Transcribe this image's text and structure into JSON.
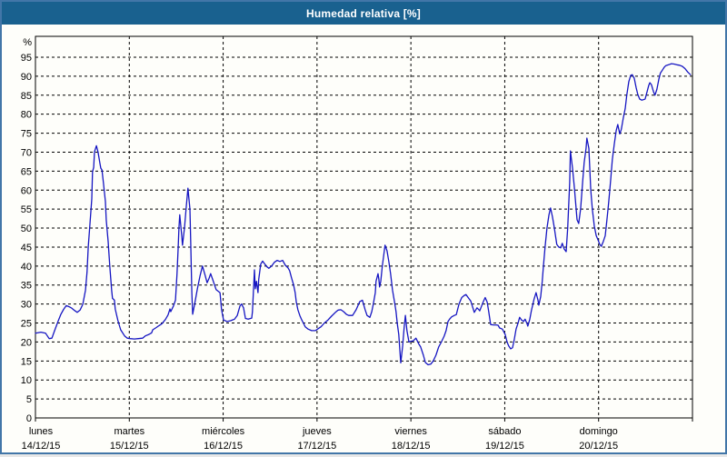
{
  "window": {
    "title": "Humedad relativa [%]"
  },
  "colors": {
    "titlebar": "#19618f",
    "frame_border": "#4276a8",
    "background": "#fefefa",
    "plot_frame": "#000000",
    "grid": "#000000",
    "line": "#1616c2",
    "text": "#000000"
  },
  "chart_data": {
    "type": "line",
    "title": "Humedad relativa [%]",
    "ylabel": "%",
    "series_name": "Humedad relativa",
    "x_unit": "hours since lunes 14/12/15 00:00",
    "xlim": [
      0,
      168
    ],
    "ylim": [
      0,
      100.5
    ],
    "grid": "dashed",
    "legend": "none",
    "y_ticks": [
      0,
      5,
      10,
      15,
      20,
      25,
      30,
      35,
      40,
      45,
      50,
      55,
      60,
      65,
      70,
      75,
      80,
      85,
      90,
      95
    ],
    "x_ticks": [
      {
        "day": "lunes",
        "date": "14/12/15",
        "t": 0
      },
      {
        "day": "martes",
        "date": "15/12/15",
        "t": 24
      },
      {
        "day": "miércoles",
        "date": "16/12/15",
        "t": 48
      },
      {
        "day": "jueves",
        "date": "17/12/15",
        "t": 72
      },
      {
        "day": "viernes",
        "date": "18/12/15",
        "t": 96
      },
      {
        "day": "sábado",
        "date": "19/12/15",
        "t": 120
      },
      {
        "day": "domingo",
        "date": "20/12/15",
        "t": 144
      }
    ],
    "points": [
      [
        0.0,
        22.3
      ],
      [
        1.4,
        22.6
      ],
      [
        2.6,
        22.3
      ],
      [
        3.5,
        20.9
      ],
      [
        4.2,
        21.0
      ],
      [
        4.9,
        23.0
      ],
      [
        5.8,
        25.5
      ],
      [
        6.5,
        27.3
      ],
      [
        7.2,
        28.6
      ],
      [
        7.9,
        29.6
      ],
      [
        8.6,
        29.3
      ],
      [
        9.3,
        28.9
      ],
      [
        10.0,
        28.3
      ],
      [
        10.7,
        27.8
      ],
      [
        11.4,
        28.4
      ],
      [
        12.1,
        29.9
      ],
      [
        12.8,
        33.7
      ],
      [
        13.2,
        38.5
      ],
      [
        13.5,
        45.0
      ],
      [
        13.9,
        50.5
      ],
      [
        14.4,
        57.7
      ],
      [
        14.6,
        64.8
      ],
      [
        14.9,
        66.0
      ],
      [
        15.1,
        70.1
      ],
      [
        15.6,
        71.7
      ],
      [
        16.0,
        70.0
      ],
      [
        16.5,
        67.0
      ],
      [
        16.7,
        65.8
      ],
      [
        17.0,
        65.3
      ],
      [
        17.4,
        61.7
      ],
      [
        17.9,
        57.0
      ],
      [
        18.1,
        52.2
      ],
      [
        18.6,
        46.5
      ],
      [
        19.0,
        40.0
      ],
      [
        19.5,
        33.5
      ],
      [
        19.7,
        31.5
      ],
      [
        20.2,
        31.0
      ],
      [
        20.4,
        28.7
      ],
      [
        21.1,
        25.6
      ],
      [
        21.8,
        23.2
      ],
      [
        22.8,
        21.6
      ],
      [
        23.5,
        21.0
      ],
      [
        24.2,
        20.9
      ],
      [
        25.3,
        20.8
      ],
      [
        26.3,
        20.9
      ],
      [
        27.4,
        21.0
      ],
      [
        28.1,
        21.6
      ],
      [
        29.0,
        22.0
      ],
      [
        29.7,
        22.4
      ],
      [
        30.0,
        23.2
      ],
      [
        30.9,
        23.8
      ],
      [
        31.6,
        24.3
      ],
      [
        32.3,
        24.8
      ],
      [
        33.2,
        25.9
      ],
      [
        33.9,
        27.1
      ],
      [
        34.4,
        28.7
      ],
      [
        34.6,
        28.0
      ],
      [
        35.3,
        29.5
      ],
      [
        35.8,
        31.0
      ],
      [
        36.2,
        38.0
      ],
      [
        36.5,
        45.0
      ],
      [
        36.7,
        50.0
      ],
      [
        36.9,
        53.5
      ],
      [
        37.4,
        48.0
      ],
      [
        37.6,
        45.5
      ],
      [
        38.1,
        50.0
      ],
      [
        38.6,
        56.0
      ],
      [
        39.0,
        60.5
      ],
      [
        39.5,
        55.0
      ],
      [
        39.7,
        46.0
      ],
      [
        40.0,
        33.0
      ],
      [
        40.2,
        27.3
      ],
      [
        40.7,
        30.0
      ],
      [
        41.4,
        34.0
      ],
      [
        42.1,
        37.5
      ],
      [
        42.7,
        40.0
      ],
      [
        43.4,
        37.5
      ],
      [
        43.9,
        35.6
      ],
      [
        44.4,
        36.8
      ],
      [
        44.8,
        38.0
      ],
      [
        45.3,
        36.5
      ],
      [
        45.8,
        35.0
      ],
      [
        46.2,
        33.8
      ],
      [
        47.2,
        33.0
      ],
      [
        47.6,
        28.5
      ],
      [
        48.1,
        25.8
      ],
      [
        49.0,
        25.4
      ],
      [
        49.9,
        25.6
      ],
      [
        50.9,
        26.0
      ],
      [
        51.6,
        27.0
      ],
      [
        52.3,
        29.5
      ],
      [
        52.7,
        30.0
      ],
      [
        53.2,
        29.0
      ],
      [
        53.7,
        26.2
      ],
      [
        54.4,
        26.0
      ],
      [
        55.3,
        26.3
      ],
      [
        55.5,
        28.0
      ],
      [
        56.0,
        39.0
      ],
      [
        56.2,
        34.0
      ],
      [
        56.5,
        36.0
      ],
      [
        56.9,
        33.0
      ],
      [
        57.1,
        36.5
      ],
      [
        57.6,
        40.5
      ],
      [
        58.1,
        41.3
      ],
      [
        58.5,
        40.7
      ],
      [
        59.2,
        39.8
      ],
      [
        59.7,
        39.4
      ],
      [
        60.4,
        40.0
      ],
      [
        61.1,
        41.0
      ],
      [
        61.8,
        41.5
      ],
      [
        62.5,
        41.2
      ],
      [
        63.2,
        41.5
      ],
      [
        63.9,
        40.2
      ],
      [
        64.6,
        39.5
      ],
      [
        65.0,
        38.8
      ],
      [
        65.5,
        36.8
      ],
      [
        66.0,
        35.1
      ],
      [
        66.4,
        33.0
      ],
      [
        66.7,
        30.6
      ],
      [
        67.1,
        28.5
      ],
      [
        67.6,
        27.0
      ],
      [
        68.1,
        25.8
      ],
      [
        68.5,
        25.0
      ],
      [
        69.0,
        24.0
      ],
      [
        69.7,
        23.4
      ],
      [
        70.6,
        23.0
      ],
      [
        71.6,
        23.0
      ],
      [
        72.0,
        23.3
      ],
      [
        73.0,
        24.0
      ],
      [
        73.9,
        25.0
      ],
      [
        74.8,
        25.8
      ],
      [
        75.7,
        26.8
      ],
      [
        76.7,
        27.8
      ],
      [
        77.4,
        28.4
      ],
      [
        78.1,
        28.5
      ],
      [
        78.8,
        28.0
      ],
      [
        79.5,
        27.3
      ],
      [
        80.1,
        27.0
      ],
      [
        81.1,
        27.0
      ],
      [
        82.0,
        28.5
      ],
      [
        82.9,
        30.6
      ],
      [
        83.6,
        31.0
      ],
      [
        84.3,
        28.5
      ],
      [
        84.8,
        27.0
      ],
      [
        85.5,
        26.5
      ],
      [
        86.0,
        28.0
      ],
      [
        86.4,
        30.0
      ],
      [
        86.9,
        33.0
      ],
      [
        87.1,
        36.0
      ],
      [
        87.6,
        38.0
      ],
      [
        87.8,
        36.5
      ],
      [
        88.0,
        34.5
      ],
      [
        88.3,
        36.0
      ],
      [
        88.7,
        40.0
      ],
      [
        89.2,
        44.0
      ],
      [
        89.4,
        45.5
      ],
      [
        89.9,
        44.0
      ],
      [
        90.4,
        41.0
      ],
      [
        90.8,
        38.0
      ],
      [
        91.3,
        33.7
      ],
      [
        91.8,
        30.6
      ],
      [
        92.2,
        28.0
      ],
      [
        92.5,
        25.0
      ],
      [
        92.9,
        22.0
      ],
      [
        93.4,
        14.5
      ],
      [
        93.9,
        19.0
      ],
      [
        94.3,
        24.0
      ],
      [
        94.6,
        27.0
      ],
      [
        95.0,
        23.0
      ],
      [
        95.5,
        20.0
      ],
      [
        96.0,
        20.2
      ],
      [
        96.6,
        20.3
      ],
      [
        97.3,
        21.0
      ],
      [
        98.0,
        19.5
      ],
      [
        98.5,
        18.7
      ],
      [
        99.2,
        16.5
      ],
      [
        99.7,
        14.6
      ],
      [
        100.4,
        14.0
      ],
      [
        101.1,
        14.2
      ],
      [
        101.7,
        15.0
      ],
      [
        102.4,
        16.5
      ],
      [
        103.1,
        18.7
      ],
      [
        103.8,
        20.0
      ],
      [
        104.5,
        21.5
      ],
      [
        105.0,
        23.0
      ],
      [
        105.5,
        25.4
      ],
      [
        105.9,
        26.0
      ],
      [
        106.4,
        26.6
      ],
      [
        107.1,
        27.0
      ],
      [
        107.6,
        27.2
      ],
      [
        108.3,
        30.0
      ],
      [
        109.0,
        31.7
      ],
      [
        109.7,
        32.3
      ],
      [
        110.1,
        32.5
      ],
      [
        110.8,
        31.5
      ],
      [
        111.3,
        30.8
      ],
      [
        111.7,
        29.5
      ],
      [
        112.2,
        27.8
      ],
      [
        112.9,
        29.0
      ],
      [
        113.4,
        28.5
      ],
      [
        113.6,
        28.2
      ],
      [
        114.1,
        29.5
      ],
      [
        114.5,
        30.6
      ],
      [
        115.0,
        31.7
      ],
      [
        115.5,
        30.5
      ],
      [
        115.9,
        28.0
      ],
      [
        116.4,
        24.6
      ],
      [
        117.1,
        24.5
      ],
      [
        117.8,
        24.5
      ],
      [
        118.3,
        24.4
      ],
      [
        118.7,
        23.7
      ],
      [
        119.4,
        23.4
      ],
      [
        120.1,
        22.0
      ],
      [
        120.6,
        20.0
      ],
      [
        121.0,
        19.0
      ],
      [
        121.5,
        18.2
      ],
      [
        122.0,
        18.5
      ],
      [
        122.4,
        20.5
      ],
      [
        122.9,
        23.4
      ],
      [
        123.4,
        25.0
      ],
      [
        123.8,
        26.5
      ],
      [
        124.3,
        25.8
      ],
      [
        124.8,
        25.4
      ],
      [
        125.2,
        26.0
      ],
      [
        125.7,
        24.8
      ],
      [
        125.9,
        24.2
      ],
      [
        126.4,
        26.0
      ],
      [
        126.8,
        28.2
      ],
      [
        127.5,
        31.3
      ],
      [
        128.0,
        33.0
      ],
      [
        128.5,
        31.0
      ],
      [
        128.7,
        29.7
      ],
      [
        129.2,
        32.0
      ],
      [
        129.6,
        36.0
      ],
      [
        129.9,
        40.0
      ],
      [
        130.3,
        45.0
      ],
      [
        130.8,
        50.0
      ],
      [
        131.3,
        53.5
      ],
      [
        131.7,
        55.3
      ],
      [
        132.2,
        53.0
      ],
      [
        132.6,
        50.5
      ],
      [
        133.3,
        45.7
      ],
      [
        133.8,
        45.0
      ],
      [
        134.3,
        44.8
      ],
      [
        134.7,
        46.0
      ],
      [
        135.2,
        44.5
      ],
      [
        135.7,
        43.8
      ],
      [
        136.1,
        50.0
      ],
      [
        136.6,
        62.0
      ],
      [
        136.8,
        70.3
      ],
      [
        137.3,
        66.0
      ],
      [
        137.8,
        60.8
      ],
      [
        138.5,
        52.2
      ],
      [
        138.9,
        51.2
      ],
      [
        139.4,
        55.0
      ],
      [
        139.9,
        62.0
      ],
      [
        140.3,
        67.2
      ],
      [
        140.8,
        71.0
      ],
      [
        141.0,
        73.7
      ],
      [
        141.5,
        71.0
      ],
      [
        142.0,
        60.0
      ],
      [
        142.4,
        55.0
      ],
      [
        142.9,
        50.5
      ],
      [
        143.4,
        48.0
      ],
      [
        143.8,
        47.0
      ],
      [
        144.3,
        45.7
      ],
      [
        144.7,
        45.2
      ],
      [
        145.2,
        46.5
      ],
      [
        145.7,
        48.0
      ],
      [
        146.1,
        52.0
      ],
      [
        146.6,
        57.0
      ],
      [
        147.1,
        63.0
      ],
      [
        147.5,
        68.0
      ],
      [
        148.0,
        72.0
      ],
      [
        148.5,
        75.7
      ],
      [
        148.9,
        77.3
      ],
      [
        149.4,
        74.8
      ],
      [
        149.8,
        76.0
      ],
      [
        150.3,
        78.9
      ],
      [
        150.8,
        81.5
      ],
      [
        151.2,
        85.0
      ],
      [
        151.7,
        88.5
      ],
      [
        152.2,
        90.2
      ],
      [
        152.6,
        90.4
      ],
      [
        153.1,
        89.5
      ],
      [
        153.6,
        87.0
      ],
      [
        154.0,
        85.2
      ],
      [
        154.5,
        84.0
      ],
      [
        155.0,
        83.7
      ],
      [
        155.4,
        83.8
      ],
      [
        155.9,
        84.0
      ],
      [
        156.3,
        85.5
      ],
      [
        156.8,
        87.5
      ],
      [
        157.1,
        88.3
      ],
      [
        157.5,
        87.8
      ],
      [
        158.0,
        86.0
      ],
      [
        158.4,
        85.0
      ],
      [
        158.9,
        86.5
      ],
      [
        159.4,
        89.2
      ],
      [
        159.8,
        90.8
      ],
      [
        160.3,
        91.6
      ],
      [
        160.8,
        92.4
      ],
      [
        161.2,
        92.8
      ],
      [
        161.9,
        93.0
      ],
      [
        162.6,
        93.3
      ],
      [
        163.3,
        93.2
      ],
      [
        164.0,
        93.0
      ],
      [
        164.7,
        92.9
      ],
      [
        165.4,
        92.6
      ],
      [
        166.1,
        92.0
      ],
      [
        166.8,
        91.1
      ],
      [
        167.5,
        90.4
      ]
    ]
  }
}
